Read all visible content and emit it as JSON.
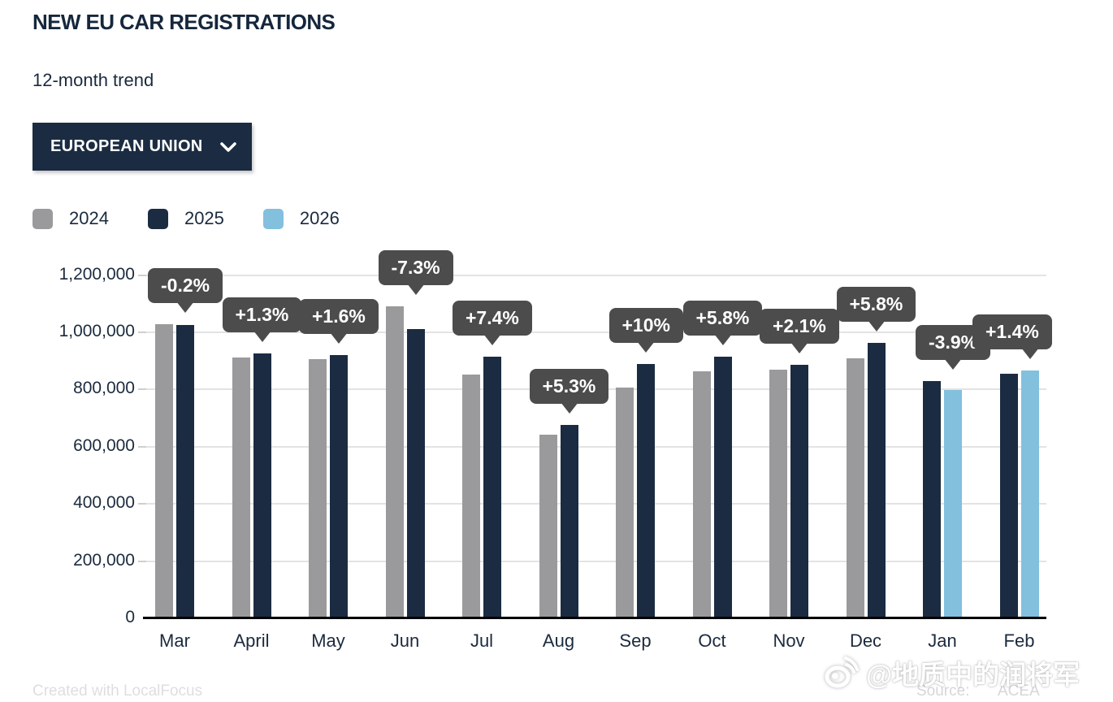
{
  "header": {
    "title": "NEW EU CAR REGISTRATIONS",
    "subtitle": "12-month trend"
  },
  "region_dropdown": {
    "label": "EUROPEAN UNION",
    "icon": "chevron-down-icon"
  },
  "legend": [
    {
      "label": "2024",
      "color": "#9a9a9c"
    },
    {
      "label": "2025",
      "color": "#1b2c42"
    },
    {
      "label": "2026",
      "color": "#82c0de"
    }
  ],
  "chart_data": {
    "type": "bar",
    "title": "NEW EU CAR REGISTRATIONS",
    "subtitle": "12-month trend",
    "region": "EUROPEAN UNION",
    "categories": [
      "Mar",
      "April",
      "May",
      "Jun",
      "Jul",
      "Aug",
      "Sep",
      "Oct",
      "Nov",
      "Dec",
      "Jan",
      "Feb"
    ],
    "series": [
      {
        "name": "2024",
        "color": "#9a9a9c",
        "values": [
          1028000,
          913000,
          907000,
          1090000,
          852000,
          643000,
          807000,
          865000,
          869000,
          910000,
          null,
          null
        ]
      },
      {
        "name": "2025",
        "color": "#1b2c42",
        "values": [
          1026000,
          925000,
          921000,
          1010000,
          915000,
          677000,
          888000,
          915000,
          887000,
          962000,
          830000,
          855000
        ]
      },
      {
        "name": "2026",
        "color": "#82c0de",
        "values": [
          null,
          null,
          null,
          null,
          null,
          null,
          null,
          null,
          null,
          null,
          798000,
          867000
        ]
      }
    ],
    "pct_change_labels": [
      "-0.2%",
      "+1.3%",
      "+1.6%",
      "-7.3%",
      "+7.4%",
      "+5.3%",
      "+10%",
      "+5.8%",
      "+2.1%",
      "+5.8%",
      "-3.9%",
      "+1.4%"
    ],
    "y_axis": {
      "ticks": [
        "0",
        "200,000",
        "400,000",
        "600,000",
        "800,000",
        "1,000,000",
        "1,200,000"
      ],
      "ylim": [
        0,
        1200000
      ]
    },
    "grid": true,
    "legend_position": "top-left",
    "tooltip_bg": "#4c4c4c"
  },
  "footer": {
    "created_with": "Created with LocalFocus",
    "source_label": "Source:",
    "source_value": "ACEA"
  },
  "watermark": {
    "icon": "weibo-logo",
    "text": "@地质中的润将军"
  }
}
